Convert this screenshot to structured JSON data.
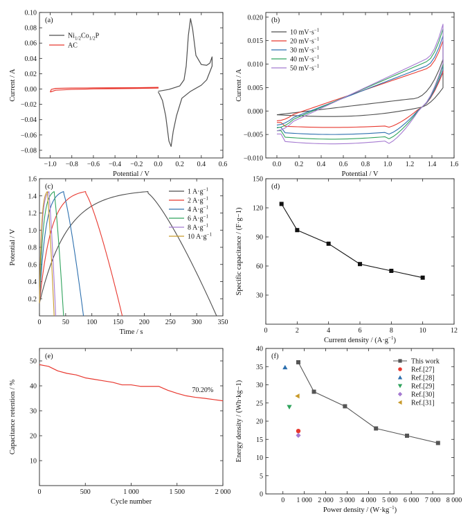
{
  "chart_data": [
    {
      "type": "line",
      "panel_label": "(a)",
      "xlabel": "Potential / V",
      "ylabel": "Current / A",
      "xlim": [
        -1.1,
        0.6
      ],
      "ylim": [
        -0.09,
        0.1
      ],
      "xticks": [
        -1.0,
        -0.8,
        -0.6,
        -0.4,
        -0.2,
        0.0,
        0.2,
        0.4,
        0.6
      ],
      "xtick_labels": [
        "−1.0",
        "−0.8",
        "−0.6",
        "−0.4",
        "−0.2",
        "0.0",
        "0.2",
        "0.4",
        "0.6"
      ],
      "yticks": [
        -0.08,
        -0.06,
        -0.04,
        -0.02,
        0.0,
        0.02,
        0.04,
        0.06,
        0.08,
        0.1
      ],
      "ytick_labels": [
        "−0.08",
        "−0.06",
        "−0.04",
        "−0.02",
        "0.00",
        "0.02",
        "0.04",
        "0.06",
        "0.08",
        "0.10"
      ],
      "legend_position": "top-left",
      "series": [
        {
          "name": "Ni1/2Co1/2P",
          "name_main": "Ni",
          "name_sub1": "1/2",
          "name_mid": "Co",
          "name_sub2": "1/2",
          "name_end": "P",
          "color": "#4d4d4d",
          "points": [
            [
              0.0,
              -0.003
            ],
            [
              0.1,
              -0.0005
            ],
            [
              0.2,
              0.004
            ],
            [
              0.24,
              0.012
            ],
            [
              0.26,
              0.03
            ],
            [
              0.28,
              0.07
            ],
            [
              0.3,
              0.092
            ],
            [
              0.32,
              0.078
            ],
            [
              0.35,
              0.044
            ],
            [
              0.4,
              0.032
            ],
            [
              0.45,
              0.031
            ],
            [
              0.48,
              0.034
            ],
            [
              0.5,
              0.042
            ],
            [
              0.5,
              0.03
            ],
            [
              0.45,
              0.012
            ],
            [
              0.4,
              0.005
            ],
            [
              0.3,
              -0.003
            ],
            [
              0.22,
              -0.012
            ],
            [
              0.17,
              -0.035
            ],
            [
              0.14,
              -0.055
            ],
            [
              0.12,
              -0.075
            ],
            [
              0.1,
              -0.068
            ],
            [
              0.07,
              -0.035
            ],
            [
              0.04,
              -0.015
            ],
            [
              0.01,
              -0.006
            ],
            [
              0.0,
              -0.004
            ]
          ]
        },
        {
          "name": "AC",
          "color": "#e8382f",
          "points": [
            [
              -1.0,
              -0.004
            ],
            [
              -0.99,
              -0.0005
            ],
            [
              -0.95,
              0.0008
            ],
            [
              -0.8,
              0.0013
            ],
            [
              -0.6,
              0.0015
            ],
            [
              -0.4,
              0.0016
            ],
            [
              -0.2,
              0.0018
            ],
            [
              0.0,
              0.0022
            ],
            [
              0.0,
              0.0012
            ],
            [
              -0.2,
              0.0008
            ],
            [
              -0.4,
              0.0005
            ],
            [
              -0.6,
              0.0002
            ],
            [
              -0.8,
              -0.0005
            ],
            [
              -0.95,
              -0.0015
            ],
            [
              -1.0,
              -0.004
            ]
          ]
        }
      ]
    },
    {
      "type": "line",
      "panel_label": "(b)",
      "xlabel": "Potential / V",
      "ylabel": "Current / A",
      "xlim": [
        -0.1,
        1.6
      ],
      "ylim": [
        -0.01,
        0.021
      ],
      "xticks": [
        0.0,
        0.2,
        0.4,
        0.6,
        0.8,
        1.0,
        1.2,
        1.4,
        1.6
      ],
      "xtick_labels": [
        "0.0",
        "0.2",
        "0.4",
        "0.6",
        "0.8",
        "1.0",
        "1.2",
        "1.4",
        "1.6"
      ],
      "yticks": [
        -0.01,
        -0.005,
        0.0,
        0.005,
        0.01,
        0.015,
        0.02
      ],
      "ytick_labels": [
        "−0.010",
        "−0.005",
        "0.000",
        "0.005",
        "0.010",
        "0.015",
        "0.020"
      ],
      "legend_position": "top-left",
      "series": [
        {
          "name": "10 mV·s−1",
          "name_main": "10 mV·s",
          "name_sup": "−1",
          "color": "#4d4d4d",
          "scan_rate": 10,
          "i_pos": 0.011,
          "i_neg": -0.001
        },
        {
          "name": "20 mV·s−1",
          "name_main": "20 mV·s",
          "name_sup": "−1",
          "color": "#e8382f",
          "scan_rate": 20,
          "i_pos": 0.015,
          "i_neg": -0.0035
        },
        {
          "name": "30 mV·s−1",
          "name_main": "30 mV·s",
          "name_sup": "−1",
          "color": "#2c6fae",
          "scan_rate": 30,
          "i_pos": 0.016,
          "i_neg": -0.005
        },
        {
          "name": "40 mV·s−1",
          "name_main": "40 mV·s",
          "name_sup": "−1",
          "color": "#2fa35c",
          "scan_rate": 40,
          "i_pos": 0.0175,
          "i_neg": -0.006
        },
        {
          "name": "50 mV·s−1",
          "name_main": "50 mV·s",
          "name_sup": "−1",
          "color": "#a57ad1",
          "scan_rate": 50,
          "i_pos": 0.0185,
          "i_neg": -0.007
        }
      ]
    },
    {
      "type": "line",
      "panel_label": "(c)",
      "xlabel": "Time / s",
      "ylabel": "Potential / V",
      "xlim": [
        0,
        350
      ],
      "ylim": [
        0,
        1.6
      ],
      "xticks": [
        0,
        50,
        100,
        150,
        200,
        250,
        300,
        350
      ],
      "xtick_labels": [
        "0",
        "50",
        "100",
        "150",
        "200",
        "250",
        "300",
        "350"
      ],
      "yticks": [
        0.2,
        0.4,
        0.6,
        0.8,
        1.0,
        1.2,
        1.4,
        1.6
      ],
      "ytick_labels": [
        "0.2",
        "0.4",
        "0.6",
        "0.8",
        "1.0",
        "1.2",
        "1.4",
        "1.6"
      ],
      "legend_position": "top-right",
      "series": [
        {
          "name": "1 A·g−1",
          "name_main": "1 A·g",
          "name_sup": "−1",
          "color": "#4d4d4d",
          "current_density": 1,
          "t_charge_end": 207,
          "t_discharge_end": 338
        },
        {
          "name": "2 A·g−1",
          "name_main": "2 A·g",
          "name_sup": "−1",
          "color": "#e8382f",
          "current_density": 2,
          "t_charge_end": 88,
          "t_discharge_end": 158
        },
        {
          "name": "4 A·g−1",
          "name_main": "4 A·g",
          "name_sup": "−1",
          "color": "#2c6fae",
          "current_density": 4,
          "t_charge_end": 46,
          "t_discharge_end": 84
        },
        {
          "name": "6 A·g−1",
          "name_main": "6 A·g",
          "name_sup": "−1",
          "color": "#2fa35c",
          "current_density": 6,
          "t_charge_end": 28,
          "t_discharge_end": 46
        },
        {
          "name": "8 A·g−1",
          "name_main": "8 A·g",
          "name_sup": "−1",
          "color": "#a57ad1",
          "current_density": 8,
          "t_charge_end": 18,
          "t_discharge_end": 31
        },
        {
          "name": "10 A·g−1",
          "name_main": "10 A·g",
          "name_sup": "−1",
          "color": "#c89a2a",
          "current_density": 10,
          "t_charge_end": 15,
          "t_discharge_end": 28
        }
      ],
      "v_max": 1.45
    },
    {
      "type": "line",
      "panel_label": "(d)",
      "xlabel": "Current density / (A·g−1)",
      "xlabel_main": "Current density / (A·g",
      "xlabel_sup": "−1",
      "xlabel_end": ")",
      "ylabel": "Specific capacitance / (F·g−1)",
      "xlim": [
        0,
        12
      ],
      "ylim": [
        0,
        150
      ],
      "xticks": [
        0,
        2,
        4,
        6,
        8,
        10,
        12
      ],
      "xtick_labels": [
        "0",
        "2",
        "4",
        "6",
        "8",
        "10",
        "12"
      ],
      "yticks": [
        30,
        60,
        90,
        120,
        150
      ],
      "ytick_labels": [
        "30",
        "60",
        "90",
        "120",
        "150"
      ],
      "series": [
        {
          "color": "#111111",
          "x": [
            1,
            2,
            4,
            6,
            8,
            10
          ],
          "y": [
            124,
            97,
            83,
            62,
            55,
            48
          ]
        }
      ]
    },
    {
      "type": "line",
      "panel_label": "(e)",
      "xlabel": "Cycle number",
      "ylabel": "Capacitance retention / %",
      "xlim": [
        0,
        2000
      ],
      "ylim": [
        0,
        55
      ],
      "xticks": [
        0,
        500,
        1000,
        1500,
        2000
      ],
      "xtick_labels": [
        "0",
        "500",
        "1 000",
        "1 500",
        "2 000"
      ],
      "yticks": [
        10,
        20,
        30,
        40,
        50
      ],
      "ytick_labels": [
        "10",
        "20",
        "30",
        "40",
        "50"
      ],
      "annotation": "70.20%",
      "annotation_at": [
        1780,
        37.5
      ],
      "series": [
        {
          "color": "#e8382f",
          "x": [
            0,
            100,
            200,
            300,
            400,
            500,
            600,
            700,
            800,
            900,
            1000,
            1100,
            1200,
            1300,
            1400,
            1500,
            1600,
            1700,
            1800,
            1900,
            2000
          ],
          "y": [
            48.5,
            47.8,
            46.0,
            45.0,
            44.4,
            43.2,
            42.6,
            42.0,
            41.4,
            40.4,
            40.4,
            39.8,
            39.8,
            39.8,
            38.2,
            37.0,
            36.0,
            35.4,
            35.0,
            34.5,
            34.0
          ]
        }
      ]
    },
    {
      "type": "scatter",
      "panel_label": "(f)",
      "xlabel": "Power density / (W·kg−1)",
      "xlabel_main": "Power density / (W·kg",
      "xlabel_sup": "−1",
      "xlabel_end": ")",
      "ylabel": "Energy density / (Wh·kg−1)",
      "xlim": [
        -800,
        8000
      ],
      "ylim": [
        0,
        40
      ],
      "xticks": [
        0,
        1000,
        2000,
        3000,
        4000,
        5000,
        6000,
        7000,
        8000
      ],
      "xtick_labels": [
        "0",
        "1 000",
        "2 000",
        "3 000",
        "4 000",
        "5 000",
        "6 000",
        "7 000",
        "8 000"
      ],
      "yticks": [
        0,
        5,
        10,
        15,
        20,
        25,
        30,
        35,
        40
      ],
      "ytick_labels": [
        "0",
        "5",
        "10",
        "15",
        "20",
        "25",
        "30",
        "35",
        "40"
      ],
      "legend_position": "top-right",
      "series": [
        {
          "name": "This work",
          "marker": "square",
          "color": "#555555",
          "line": true,
          "x": [
            720,
            1450,
            2900,
            4350,
            5800,
            7250
          ],
          "y": [
            36.2,
            28.1,
            24.1,
            18.0,
            16.0,
            14.0
          ]
        },
        {
          "name": "Ref.[27]",
          "marker": "circle",
          "color": "#e8382f",
          "line": false,
          "x": [
            720
          ],
          "y": [
            17.3
          ]
        },
        {
          "name": "Ref.[28]",
          "marker": "triangle-up",
          "color": "#2c6fae",
          "line": false,
          "x": [
            100
          ],
          "y": [
            34.8
          ]
        },
        {
          "name": "Ref.[29]",
          "marker": "triangle-down",
          "color": "#2fa35c",
          "line": false,
          "x": [
            300
          ],
          "y": [
            23.9
          ]
        },
        {
          "name": "Ref.[30]",
          "marker": "diamond",
          "color": "#a57ad1",
          "line": false,
          "x": [
            720
          ],
          "y": [
            16.1
          ]
        },
        {
          "name": "Ref.[31]",
          "marker": "triangle-left",
          "color": "#c89a2a",
          "line": false,
          "x": [
            680
          ],
          "y": [
            26.9
          ]
        }
      ]
    }
  ]
}
